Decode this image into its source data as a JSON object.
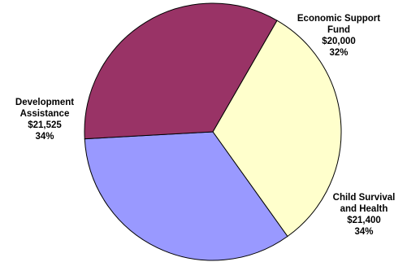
{
  "chart_data": {
    "type": "pie",
    "title": "",
    "start_angle_deg": -60,
    "direction": "clockwise",
    "slices": [
      {
        "label_lines": [
          "Economic Support",
          "Fund"
        ],
        "value": 20000,
        "value_text": "$20,000",
        "percent_text": "32%",
        "color": "#FFFFCC"
      },
      {
        "label_lines": [
          "Child Survival",
          "and Health"
        ],
        "value": 21400,
        "value_text": "$21,400",
        "percent_text": "34%",
        "color": "#9999FF"
      },
      {
        "label_lines": [
          "Development",
          "Assistance"
        ],
        "value": 21525,
        "value_text": "$21,525",
        "percent_text": "34%",
        "color": "#993366"
      }
    ]
  }
}
